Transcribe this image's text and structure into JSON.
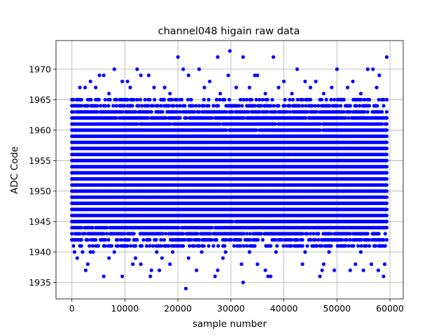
{
  "chart_data": {
    "type": "scatter",
    "title": "channel048 higain raw data",
    "xlabel": "sample number",
    "ylabel": "ADC Code",
    "xlim": [
      -3000,
      62500
    ],
    "ylim": [
      1932.3,
      1974.7
    ],
    "xticks": [
      0,
      10000,
      20000,
      30000,
      40000,
      50000,
      60000
    ],
    "xtick_labels": [
      "0",
      "10000",
      "20000",
      "30000",
      "40000",
      "50000",
      "60000"
    ],
    "yticks": [
      1935,
      1940,
      1945,
      1950,
      1955,
      1960,
      1965,
      1970
    ],
    "ytick_labels": [
      "1935",
      "1940",
      "1945",
      "1950",
      "1955",
      "1960",
      "1965",
      "1970"
    ],
    "grid": true,
    "marker_color": "#0000ff",
    "x_range": [
      0,
      59400
    ],
    "dense_band": {
      "levels": [
        1941,
        1942,
        1943,
        1944,
        1945,
        1946,
        1947,
        1948,
        1949,
        1950,
        1951,
        1952,
        1953,
        1954,
        1955,
        1956,
        1957,
        1958,
        1959,
        1960,
        1961,
        1962,
        1963,
        1964,
        1965
      ],
      "density": [
        0.55,
        0.7,
        0.85,
        0.95,
        0.98,
        1,
        1,
        1,
        1,
        1,
        1,
        1,
        1,
        1,
        1,
        1,
        1,
        1,
        1,
        0.99,
        0.97,
        0.92,
        0.85,
        0.7,
        0.5
      ]
    },
    "points": [
      [
        1000,
        1939
      ],
      [
        2000,
        1940
      ],
      [
        2600,
        1937
      ],
      [
        3000,
        1938
      ],
      [
        4000,
        1940
      ],
      [
        6000,
        1936
      ],
      [
        7000,
        1939
      ],
      [
        9500,
        1936
      ],
      [
        11500,
        1938
      ],
      [
        12000,
        1939
      ],
      [
        13000,
        1938
      ],
      [
        14800,
        1936
      ],
      [
        15000,
        1937
      ],
      [
        16500,
        1937
      ],
      [
        17000,
        1939
      ],
      [
        18500,
        1938
      ],
      [
        21500,
        1934
      ],
      [
        22000,
        1939
      ],
      [
        23500,
        1937
      ],
      [
        27000,
        1936
      ],
      [
        27500,
        1937
      ],
      [
        28500,
        1939
      ],
      [
        32000,
        1938
      ],
      [
        32300,
        1935
      ],
      [
        35000,
        1938
      ],
      [
        36500,
        1937
      ],
      [
        37000,
        1936
      ],
      [
        37500,
        1936
      ],
      [
        43500,
        1938
      ],
      [
        46800,
        1936
      ],
      [
        47200,
        1937
      ],
      [
        47500,
        1938
      ],
      [
        49500,
        1937
      ],
      [
        52500,
        1937
      ],
      [
        53500,
        1938
      ],
      [
        55000,
        1937
      ],
      [
        56500,
        1938
      ],
      [
        57800,
        1937
      ],
      [
        58800,
        1936
      ],
      [
        59000,
        1938
      ],
      [
        500,
        1940
      ],
      [
        1500,
        1941
      ],
      [
        3500,
        1940
      ],
      [
        5000,
        1941
      ],
      [
        8000,
        1940
      ],
      [
        10000,
        1941
      ],
      [
        16000,
        1940
      ],
      [
        19000,
        1940
      ],
      [
        20500,
        1941
      ],
      [
        24500,
        1940
      ],
      [
        29000,
        1940
      ],
      [
        33500,
        1940
      ],
      [
        38500,
        1940
      ],
      [
        41000,
        1941
      ],
      [
        44000,
        1940
      ],
      [
        48500,
        1940
      ],
      [
        51000,
        1941
      ],
      [
        54500,
        1940
      ],
      [
        58000,
        1941
      ],
      [
        20000,
        1972
      ],
      [
        22000,
        1969
      ],
      [
        21000,
        1970
      ],
      [
        24000,
        1970
      ],
      [
        27500,
        1972
      ],
      [
        29800,
        1973
      ],
      [
        29500,
        1969
      ],
      [
        32300,
        1972
      ],
      [
        35000,
        1969
      ],
      [
        38000,
        1972
      ],
      [
        42500,
        1970
      ],
      [
        50000,
        1970
      ],
      [
        55800,
        1970
      ],
      [
        56800,
        1970
      ],
      [
        58000,
        1969
      ],
      [
        59400,
        1972
      ],
      [
        8000,
        1970
      ],
      [
        12300,
        1970
      ],
      [
        5200,
        1969
      ],
      [
        6000,
        1969
      ],
      [
        13000,
        1969
      ],
      [
        14500,
        1969
      ],
      [
        34500,
        1969
      ],
      [
        40000,
        1968
      ],
      [
        3500,
        1968
      ],
      [
        9500,
        1968
      ],
      [
        10500,
        1968
      ],
      [
        17500,
        1967
      ],
      [
        26000,
        1968
      ],
      [
        44000,
        1968
      ],
      [
        46000,
        1968
      ],
      [
        53000,
        1968
      ],
      [
        1500,
        1967
      ],
      [
        2500,
        1967
      ],
      [
        4500,
        1967
      ],
      [
        7000,
        1966
      ],
      [
        11000,
        1967
      ],
      [
        15500,
        1967
      ],
      [
        18500,
        1966
      ],
      [
        25000,
        1967
      ],
      [
        28000,
        1966
      ],
      [
        31000,
        1967
      ],
      [
        33500,
        1967
      ],
      [
        36500,
        1966
      ],
      [
        39000,
        1967
      ],
      [
        41500,
        1966
      ],
      [
        45000,
        1967
      ],
      [
        47500,
        1966
      ],
      [
        49000,
        1967
      ],
      [
        52000,
        1967
      ],
      [
        54500,
        1966
      ],
      [
        57500,
        1967
      ]
    ]
  }
}
